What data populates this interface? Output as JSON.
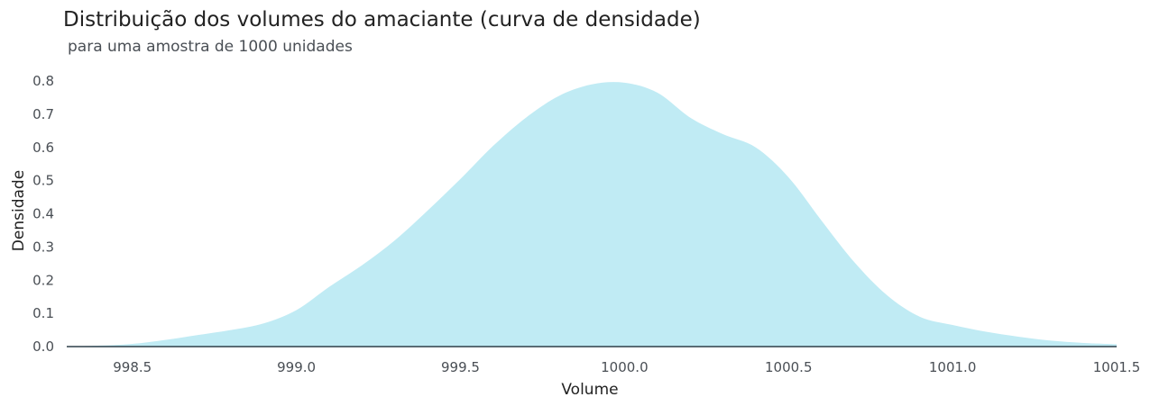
{
  "chart_data": {
    "type": "area",
    "title": "Distribuição dos volumes do amaciante (curva de densidade)",
    "subtitle": "para uma amostra de 1000 unidades",
    "xlabel": "Volume",
    "ylabel": "Densidade",
    "xlim": [
      998.3,
      1001.5
    ],
    "ylim": [
      0,
      0.8
    ],
    "xticks": [
      "998.5",
      "999.0",
      "999.5",
      "1000.0",
      "1000.5",
      "1001.0",
      "1001.5"
    ],
    "yticks": [
      "0.0",
      "0.1",
      "0.2",
      "0.3",
      "0.4",
      "0.5",
      "0.6",
      "0.7",
      "0.8"
    ],
    "grid": false,
    "fill_color": "#c0ebf4",
    "baseline_color": "#2d3e48",
    "series": [
      {
        "x": [
          998.3,
          998.4,
          998.5,
          998.6,
          998.7,
          998.8,
          998.9,
          999.0,
          999.1,
          999.2,
          999.3,
          999.4,
          999.5,
          999.6,
          999.7,
          999.8,
          999.9,
          1000.0,
          1000.1,
          1000.2,
          1000.3,
          1000.4,
          1000.5,
          1000.6,
          1000.7,
          1000.8,
          1000.9,
          1001.0,
          1001.1,
          1001.2,
          1001.3,
          1001.4,
          1001.5
        ],
        "y": [
          0.0,
          0.003,
          0.008,
          0.02,
          0.035,
          0.05,
          0.07,
          0.11,
          0.18,
          0.245,
          0.32,
          0.41,
          0.505,
          0.605,
          0.69,
          0.755,
          0.79,
          0.795,
          0.765,
          0.69,
          0.64,
          0.6,
          0.51,
          0.38,
          0.255,
          0.155,
          0.09,
          0.065,
          0.045,
          0.03,
          0.018,
          0.011,
          0.007
        ]
      }
    ]
  }
}
